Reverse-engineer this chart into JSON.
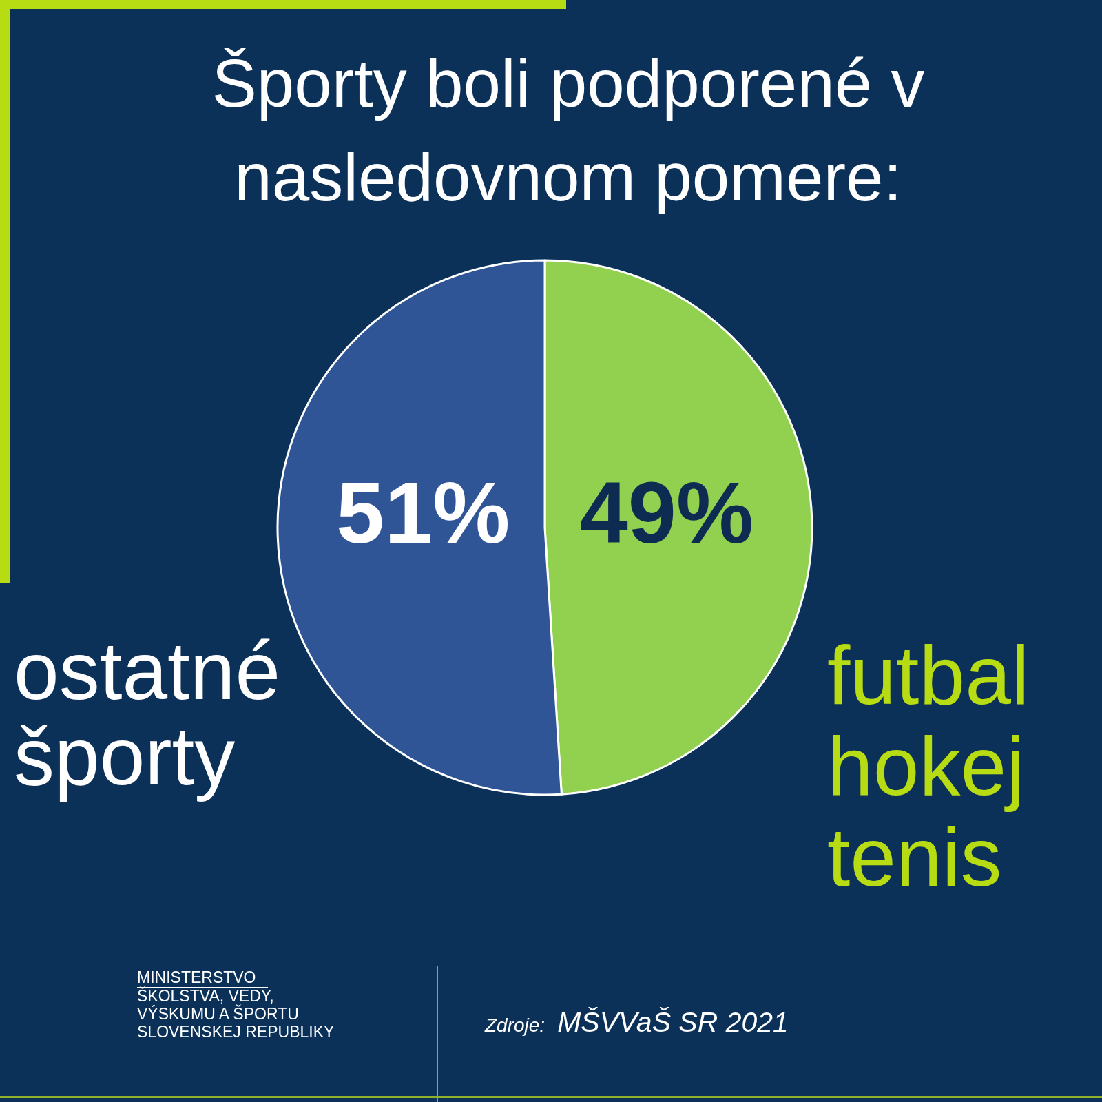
{
  "chart_data": {
    "type": "pie",
    "title": "Športy boli podporené v nasledovnom pomere:",
    "categories": [
      "futbal hokej tenis",
      "ostatné športy"
    ],
    "values": [
      49,
      51
    ],
    "colors": [
      "#92d050",
      "#2f5597"
    ],
    "value_labels": [
      "49%",
      "51%"
    ],
    "annotations": [
      "MINISTERSTVO ŠKOLSTVA, VEDY, VÝSKUMU A ŠPORTU SLOVENSKEJ REPUBLIKY",
      "Zdroje: MŠVVaŠ SR 2021"
    ]
  }
}
